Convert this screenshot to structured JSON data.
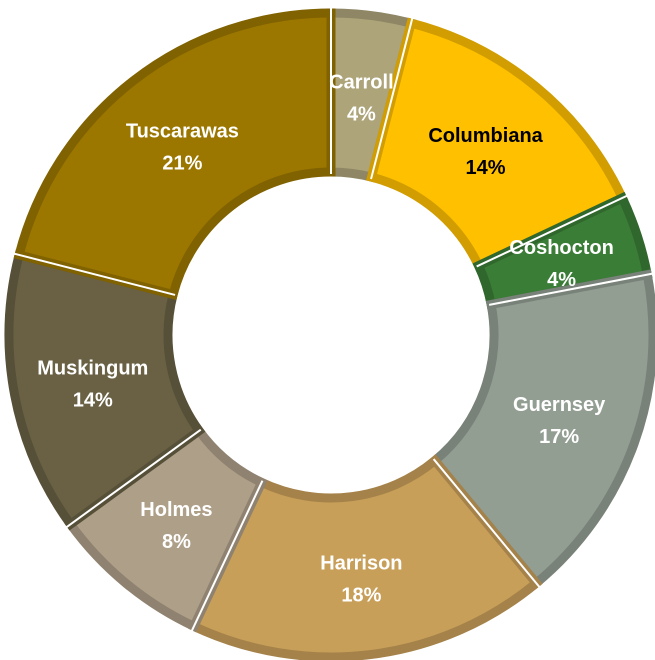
{
  "chart_data": {
    "type": "pie",
    "donut": true,
    "title": "",
    "categories": [
      "Carroll",
      "Columbiana",
      "Coshocton",
      "Guernsey",
      "Harrison",
      "Holmes",
      "Muskingum",
      "Tuscarawas"
    ],
    "values": [
      4,
      14,
      4,
      17,
      18,
      8,
      14,
      21
    ],
    "labels": [
      "4%",
      "14%",
      "4%",
      "17%",
      "18%",
      "8%",
      "14%",
      "21%"
    ],
    "colors": [
      "#ADA47A",
      "#FFC000",
      "#3A7D36",
      "#939E93",
      "#C89F59",
      "#AE9F88",
      "#6A6145",
      "#9C7700"
    ],
    "label_colors": [
      "#ffffff",
      "#000000",
      "#ffffff",
      "#ffffff",
      "#ffffff",
      "#ffffff",
      "#ffffff",
      "#ffffff"
    ],
    "start_angle_deg": 0,
    "direction": "clockwise",
    "legend": "none"
  }
}
